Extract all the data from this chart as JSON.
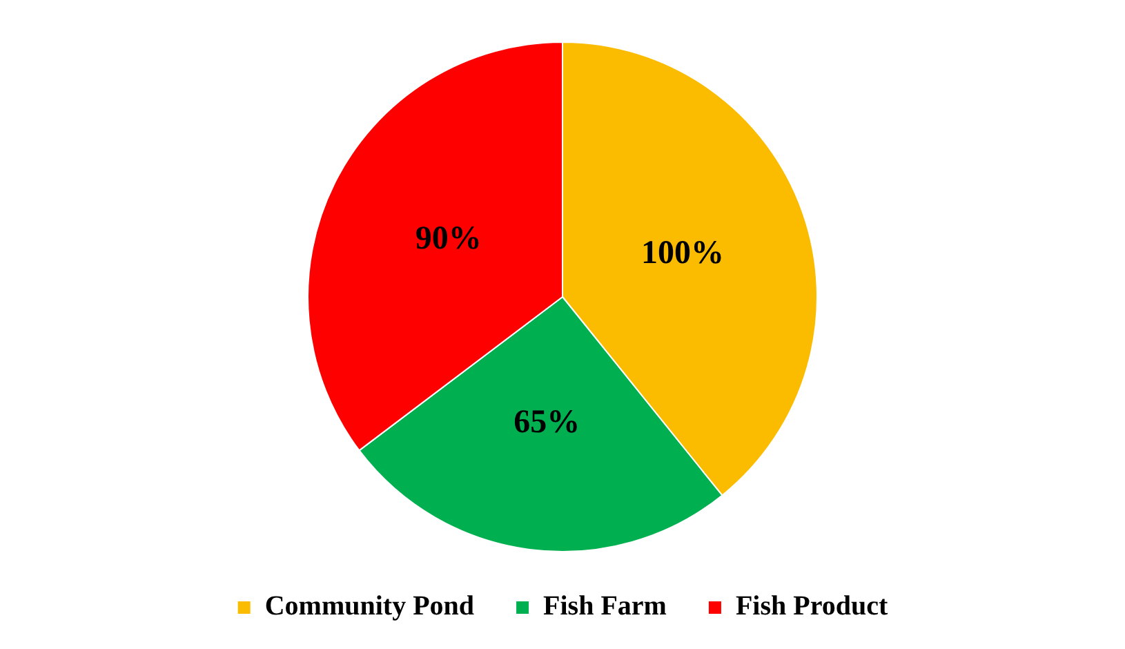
{
  "chart_data": {
    "type": "pie",
    "categories": [
      "Community Pond",
      "Fish Farm",
      "Fish Product"
    ],
    "values": [
      100,
      65,
      90
    ],
    "colors": [
      "#fbbc00",
      "#00b050",
      "#ff0000"
    ],
    "value_labels": [
      "100%",
      "65%",
      "90%"
    ],
    "legend": "bottom"
  }
}
